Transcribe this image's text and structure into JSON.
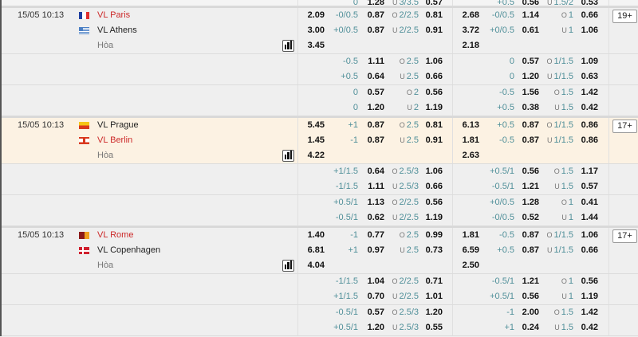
{
  "colors": {
    "team_highlight": "#cc2a2a",
    "highlight_row": "#fcf2e3",
    "handicap_text": "#4f8f99"
  },
  "top_partial": {
    "lines": [
      {
        "h": "0",
        "ho": "1.28",
        "ou_side": "U",
        "ou": "3/3.5",
        "ouo": "0.57",
        "hb": "+0.5",
        "hob": "0.56",
        "oub_side": "U",
        "oub": "1.5/2",
        "ouob": "0.53"
      }
    ]
  },
  "matches": [
    {
      "date": "15/05 10:13",
      "home": "VL Paris",
      "home_flag": "france",
      "home_red": true,
      "away": "VL Athens",
      "away_flag": "greece",
      "away_red": false,
      "draw_label": "Hòa",
      "more_label": "19+",
      "highlight": false,
      "stats_icon": "bar-chart-icon",
      "main": [
        {
          "x12": "2.09",
          "h": "-0/0.5",
          "ho": "0.87",
          "ou_side": "O",
          "ou": "2/2.5",
          "ouo": "0.81",
          "x12b": "2.68",
          "hb": "-0/0.5",
          "hob": "1.14",
          "oub_side": "O",
          "oub": "1",
          "ouob": "0.66"
        },
        {
          "x12": "3.00",
          "h": "+0/0.5",
          "ho": "0.87",
          "ou_side": "U",
          "ou": "2/2.5",
          "ouo": "0.91",
          "x12b": "3.72",
          "hb": "+0/0.5",
          "hob": "0.61",
          "oub_side": "U",
          "oub": "1",
          "ouob": "1.06"
        },
        {
          "x12": "3.45",
          "x12b": "2.18"
        }
      ],
      "extra": [
        [
          {
            "h": "-0.5",
            "ho": "1.11",
            "ou_side": "O",
            "ou": "2.5",
            "ouo": "1.06",
            "hb": "0",
            "hob": "0.57",
            "oub_side": "O",
            "oub": "1/1.5",
            "ouob": "1.09"
          },
          {
            "h": "+0.5",
            "ho": "0.64",
            "ou_side": "U",
            "ou": "2.5",
            "ouo": "0.66",
            "hb": "0",
            "hob": "1.20",
            "oub_side": "U",
            "oub": "1/1.5",
            "ouob": "0.63"
          }
        ],
        [
          {
            "h": "0",
            "ho": "0.57",
            "ou_side": "O",
            "ou": "2",
            "ouo": "0.56",
            "hb": "-0.5",
            "hob": "1.56",
            "oub_side": "O",
            "oub": "1.5",
            "ouob": "1.42"
          },
          {
            "h": "0",
            "ho": "1.20",
            "ou_side": "U",
            "ou": "2",
            "ouo": "1.19",
            "hb": "+0.5",
            "hob": "0.38",
            "oub_side": "U",
            "oub": "1.5",
            "ouob": "0.42"
          }
        ]
      ]
    },
    {
      "date": "15/05 10:13",
      "home": "VL Prague",
      "home_flag": "prague",
      "home_red": false,
      "away": "VL Berlin",
      "away_flag": "berlin",
      "away_red": true,
      "draw_label": "Hòa",
      "more_label": "17+",
      "highlight": true,
      "stats_icon": "bar-chart-icon",
      "main": [
        {
          "x12": "5.45",
          "h": "+1",
          "ho": "0.87",
          "ou_side": "O",
          "ou": "2.5",
          "ouo": "0.81",
          "x12b": "6.13",
          "hb": "+0.5",
          "hob": "0.87",
          "oub_side": "O",
          "oub": "1/1.5",
          "ouob": "0.86"
        },
        {
          "x12": "1.45",
          "h": "-1",
          "ho": "0.87",
          "ou_side": "U",
          "ou": "2.5",
          "ouo": "0.91",
          "x12b": "1.81",
          "hb": "-0.5",
          "hob": "0.87",
          "oub_side": "U",
          "oub": "1/1.5",
          "ouob": "0.86"
        },
        {
          "x12": "4.22",
          "x12b": "2.63"
        }
      ],
      "extra": [
        [
          {
            "h": "+1/1.5",
            "ho": "0.64",
            "ou_side": "O",
            "ou": "2.5/3",
            "ouo": "1.06",
            "hb": "+0.5/1",
            "hob": "0.56",
            "oub_side": "O",
            "oub": "1.5",
            "ouob": "1.17"
          },
          {
            "h": "-1/1.5",
            "ho": "1.11",
            "ou_side": "U",
            "ou": "2.5/3",
            "ouo": "0.66",
            "hb": "-0.5/1",
            "hob": "1.21",
            "oub_side": "U",
            "oub": "1.5",
            "ouob": "0.57"
          }
        ],
        [
          {
            "h": "+0.5/1",
            "ho": "1.13",
            "ou_side": "O",
            "ou": "2/2.5",
            "ouo": "0.56",
            "hb": "+0/0.5",
            "hob": "1.28",
            "oub_side": "O",
            "oub": "1",
            "ouob": "0.41"
          },
          {
            "h": "-0.5/1",
            "ho": "0.62",
            "ou_side": "U",
            "ou": "2/2.5",
            "ouo": "1.19",
            "hb": "-0/0.5",
            "hob": "0.52",
            "oub_side": "U",
            "oub": "1",
            "ouob": "1.44"
          }
        ]
      ]
    },
    {
      "date": "15/05 10:13",
      "home": "VL Rome",
      "home_flag": "rome",
      "home_red": true,
      "away": "VL Copenhagen",
      "away_flag": "denmark",
      "away_red": false,
      "draw_label": "Hòa",
      "more_label": "17+",
      "highlight": false,
      "stats_icon": "bar-chart-icon",
      "main": [
        {
          "x12": "1.40",
          "h": "-1",
          "ho": "0.77",
          "ou_side": "O",
          "ou": "2.5",
          "ouo": "0.99",
          "x12b": "1.81",
          "hb": "-0.5",
          "hob": "0.87",
          "oub_side": "O",
          "oub": "1/1.5",
          "ouob": "1.06"
        },
        {
          "x12": "6.81",
          "h": "+1",
          "ho": "0.97",
          "ou_side": "U",
          "ou": "2.5",
          "ouo": "0.73",
          "x12b": "6.59",
          "hb": "+0.5",
          "hob": "0.87",
          "oub_side": "U",
          "oub": "1/1.5",
          "ouob": "0.66"
        },
        {
          "x12": "4.04",
          "x12b": "2.50"
        }
      ],
      "extra": [
        [
          {
            "h": "-1/1.5",
            "ho": "1.04",
            "ou_side": "O",
            "ou": "2/2.5",
            "ouo": "0.71",
            "hb": "-0.5/1",
            "hob": "1.21",
            "oub_side": "O",
            "oub": "1",
            "ouob": "0.56"
          },
          {
            "h": "+1/1.5",
            "ho": "0.70",
            "ou_side": "U",
            "ou": "2/2.5",
            "ouo": "1.01",
            "hb": "+0.5/1",
            "hob": "0.56",
            "oub_side": "U",
            "oub": "1",
            "ouob": "1.19"
          }
        ],
        [
          {
            "h": "-0.5/1",
            "ho": "0.57",
            "ou_side": "O",
            "ou": "2.5/3",
            "ouo": "1.20",
            "hb": "-1",
            "hob": "2.00",
            "oub_side": "O",
            "oub": "1.5",
            "ouob": "1.42"
          },
          {
            "h": "+0.5/1",
            "ho": "1.20",
            "ou_side": "U",
            "ou": "2.5/3",
            "ouo": "0.55",
            "hb": "+1",
            "hob": "0.24",
            "oub_side": "U",
            "oub": "1.5",
            "ouob": "0.42"
          }
        ]
      ]
    }
  ]
}
